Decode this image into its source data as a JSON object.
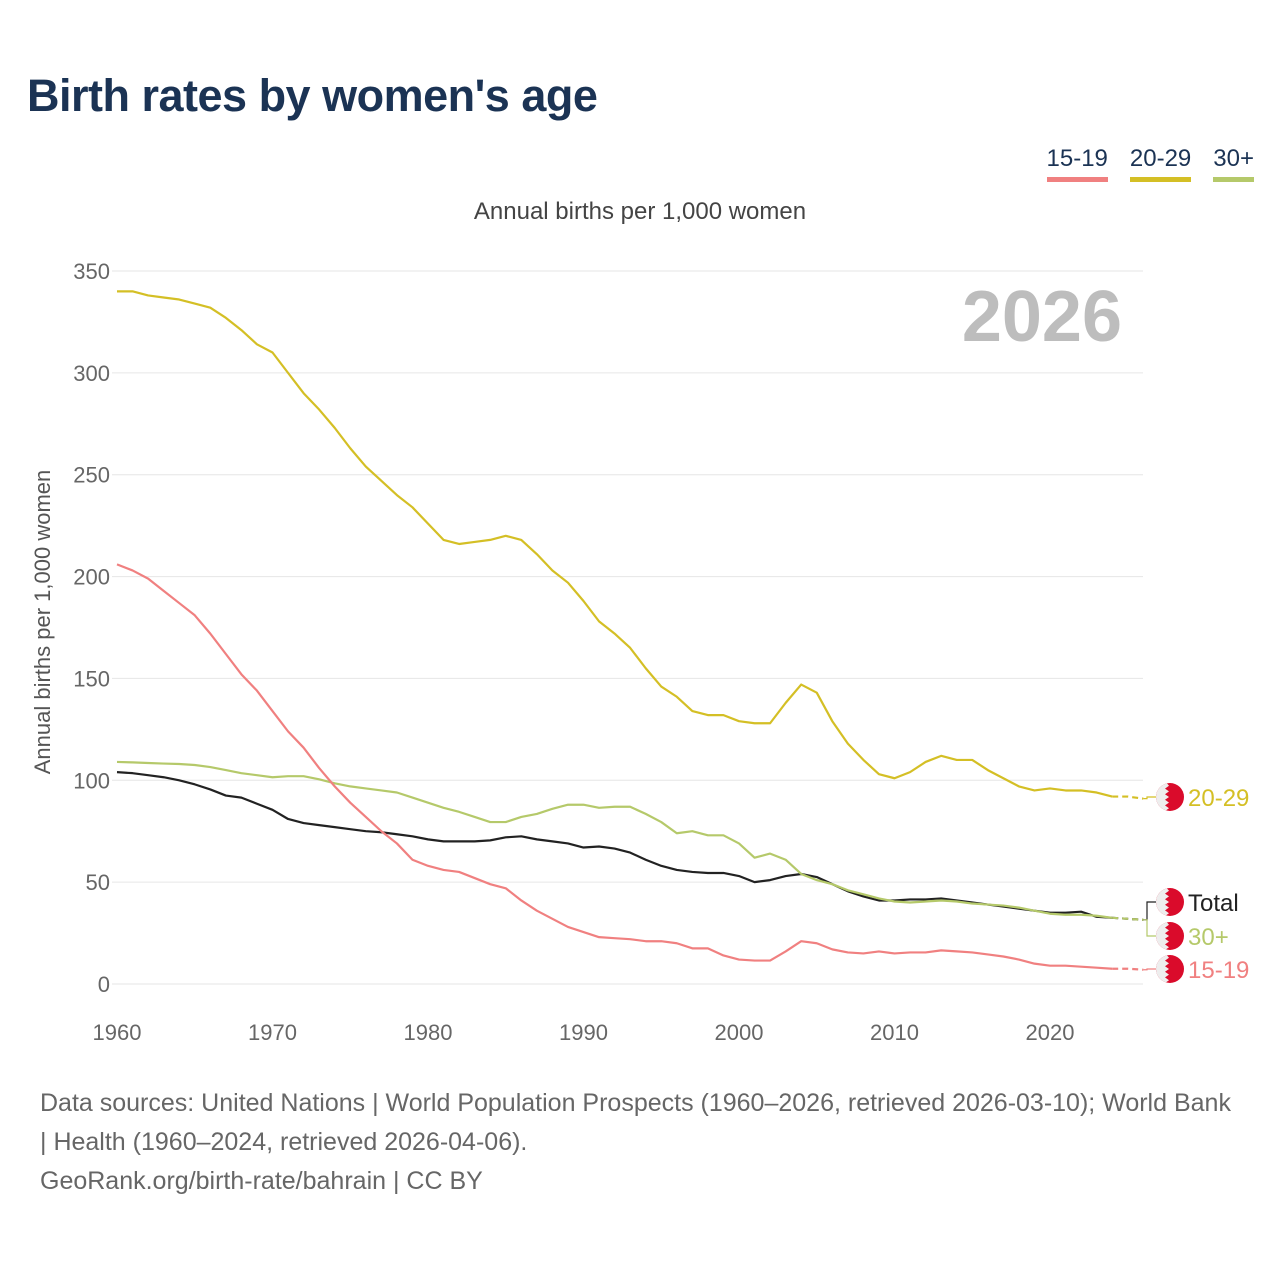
{
  "title": "Birth rates by women's age",
  "legend": [
    {
      "label": "15-19",
      "color": "#f08080"
    },
    {
      "label": "20-29",
      "color": "#d4bf25"
    },
    {
      "label": "30+",
      "color": "#b5c96a"
    }
  ],
  "footer": {
    "sources": "Data sources: United Nations | World Population Prospects (1960–2026, retrieved 2026-03-10); World Bank | Health (1960–2024, retrieved 2026-04-06).",
    "credit": "GeoRank.org/birth-rate/bahrain | CC BY"
  },
  "chart_data": {
    "type": "line",
    "title": "Birth rates by women's age",
    "subtitle": "Annual births per 1,000 women",
    "ylabel": "Annual births per 1,000 women",
    "xlabel": "",
    "year_label": "2026",
    "xlim": [
      1960,
      2026
    ],
    "ylim": [
      0,
      350
    ],
    "xticks": [
      1960,
      1970,
      1980,
      1990,
      2000,
      2010,
      2020
    ],
    "yticks": [
      0,
      50,
      100,
      150,
      200,
      250,
      300,
      350
    ],
    "grid": true,
    "projection_from": 2024,
    "start_year": 1960,
    "series": [
      {
        "name": "20-29",
        "label": "20-29",
        "color": "#d4bf25",
        "values": [
          340,
          340,
          338,
          337,
          336,
          334,
          332,
          327,
          321,
          314,
          310,
          300,
          290,
          282,
          273,
          263,
          254,
          247,
          240,
          234,
          226,
          218,
          216,
          217,
          218,
          220,
          218,
          211,
          203,
          197,
          188,
          178,
          172,
          165,
          155,
          146,
          141,
          134,
          132,
          132,
          129,
          128,
          128,
          138,
          147,
          143,
          129,
          118,
          110,
          103,
          101,
          104,
          109,
          112,
          110,
          110,
          105,
          101,
          97,
          95,
          96,
          95,
          95,
          94,
          92,
          92,
          91
        ]
      },
      {
        "name": "Total",
        "label": "Total",
        "color": "#222222",
        "values": [
          104,
          103.5,
          102.5,
          101.5,
          100,
          98,
          95.5,
          92.5,
          91.5,
          88.5,
          85.5,
          81,
          79,
          78,
          77,
          76,
          75,
          74.5,
          73.5,
          72.5,
          71,
          70,
          70,
          70,
          70.5,
          72,
          72.5,
          71,
          70,
          69,
          67,
          67.5,
          66.5,
          64.5,
          61,
          58,
          56,
          55,
          54.5,
          54.5,
          53,
          50,
          51,
          53,
          54,
          52.5,
          49,
          45.5,
          43,
          41,
          41,
          41.5,
          41.5,
          42,
          41,
          40,
          39,
          38,
          37,
          36,
          35,
          35,
          35.5,
          33,
          32.5,
          32,
          31.5
        ]
      },
      {
        "name": "30+",
        "label": "30+",
        "color": "#b5c96a",
        "values": [
          109,
          108.8,
          108.5,
          108.2,
          108,
          107.5,
          106.5,
          105,
          103.5,
          102.5,
          101.5,
          102,
          102,
          100.5,
          98.5,
          97,
          96,
          95,
          94,
          91.5,
          89,
          86.5,
          84.5,
          82,
          79.5,
          79.5,
          82,
          83.5,
          86,
          88,
          88,
          86.5,
          87,
          87,
          83.5,
          79.5,
          74,
          75,
          73,
          73,
          69,
          62,
          64,
          61,
          54,
          51,
          49,
          46,
          44,
          42,
          40.5,
          40,
          40.5,
          41,
          40.5,
          39.5,
          39,
          38.5,
          37.5,
          36,
          34.5,
          34,
          34,
          33.5,
          32.5,
          32,
          31.5
        ]
      },
      {
        "name": "15-19",
        "label": "15-19",
        "color": "#f08080",
        "values": [
          206,
          203,
          199,
          193,
          187,
          181,
          172,
          162,
          152,
          144,
          134,
          124,
          116,
          106,
          97,
          89,
          82,
          75,
          69,
          61,
          58,
          56,
          55,
          52,
          49,
          47,
          41,
          36,
          32,
          28,
          25.5,
          23,
          22.5,
          22,
          21,
          21,
          20,
          17.5,
          17.5,
          14,
          12,
          11.5,
          11.5,
          16,
          21,
          20,
          17,
          15.5,
          15,
          16,
          15,
          15.5,
          15.5,
          16.5,
          16,
          15.5,
          14.5,
          13.5,
          12,
          10,
          9,
          9,
          8.5,
          8,
          7.5,
          7.5,
          7
        ]
      }
    ]
  }
}
